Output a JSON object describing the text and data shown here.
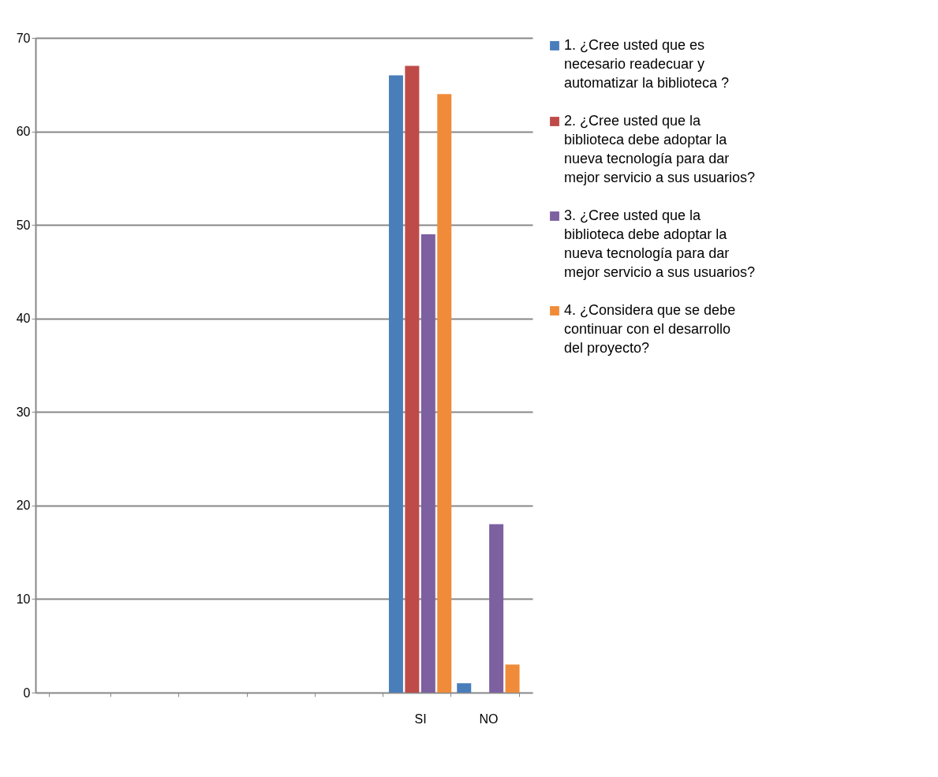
{
  "chart_data": {
    "type": "bar",
    "categories": [
      null,
      null,
      null,
      null,
      null,
      "SI",
      "NO"
    ],
    "series": [
      {
        "name": "1. ¿Cree usted que es necesario readecuar y automatizar la biblioteca ?",
        "color": "#4a7ebb",
        "values": [
          null,
          null,
          null,
          null,
          null,
          66,
          1
        ]
      },
      {
        "name": "2. ¿Cree usted que la biblioteca debe adoptar la nueva tecnología para dar mejor servicio a sus usuarios?",
        "color": "#be4b48",
        "values": [
          null,
          null,
          null,
          null,
          null,
          67,
          0
        ]
      },
      {
        "name": "3. ¿Cree usted que la biblioteca debe adoptar la nueva tecnología para dar mejor servicio a sus usuarios?",
        "color": "#7d60a0",
        "values": [
          null,
          null,
          null,
          null,
          null,
          49,
          18
        ]
      },
      {
        "name": "4. ¿Considera que se debe continuar con el desarrollo del proyecto?",
        "color": "#f08c39",
        "values": [
          null,
          null,
          null,
          null,
          null,
          64,
          3
        ]
      }
    ],
    "ylim": [
      0,
      70
    ],
    "yticks": [
      0,
      10,
      20,
      30,
      40,
      50,
      60,
      70
    ],
    "grid": "y",
    "legend": "right"
  }
}
